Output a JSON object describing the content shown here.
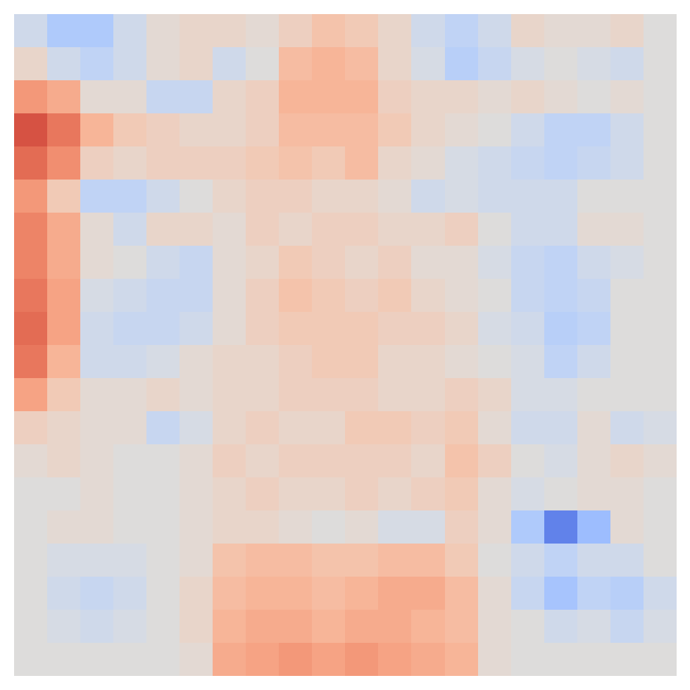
{
  "chart_data": {
    "type": "heatmap",
    "tick_labels": false,
    "color_range": [
      -1,
      1
    ],
    "cells": [
      [
        -0.1,
        -0.3,
        -0.3,
        -0.1,
        0.05,
        0.1,
        0.1,
        0.05,
        0.15,
        0.25,
        0.2,
        0.1,
        -0.1,
        -0.2,
        -0.1,
        0.1,
        0.05,
        0.05,
        0.1,
        0
      ],
      [
        0.1,
        -0.1,
        -0.2,
        -0.1,
        0.05,
        0.1,
        -0.1,
        0,
        0.3,
        0.35,
        0.3,
        0.1,
        -0.05,
        -0.25,
        -0.15,
        -0.05,
        0,
        -0.05,
        -0.1,
        0
      ],
      [
        0.5,
        0.4,
        0.05,
        0.05,
        -0.15,
        -0.15,
        0.1,
        0.15,
        0.35,
        0.35,
        0.35,
        0.15,
        0.1,
        0.1,
        0.05,
        0.1,
        0.05,
        0,
        0.05,
        0
      ],
      [
        0.8,
        0.65,
        0.35,
        0.2,
        0.15,
        0.1,
        0.1,
        0.15,
        0.3,
        0.3,
        0.3,
        0.2,
        0.1,
        0.05,
        0,
        -0.1,
        -0.2,
        -0.2,
        -0.1,
        0
      ],
      [
        0.7,
        0.55,
        0.15,
        0.1,
        0.15,
        0.15,
        0.15,
        0.2,
        0.25,
        0.2,
        0.3,
        0.1,
        0.05,
        -0.05,
        -0.1,
        -0.15,
        -0.2,
        -0.15,
        -0.1,
        0
      ],
      [
        0.5,
        0.2,
        -0.2,
        -0.2,
        -0.1,
        0,
        0.1,
        0.15,
        0.15,
        0.1,
        0.1,
        0.05,
        -0.1,
        -0.05,
        -0.1,
        -0.1,
        -0.1,
        0,
        0,
        0
      ],
      [
        0.6,
        0.4,
        0.05,
        -0.1,
        0.1,
        0.1,
        0.05,
        0.15,
        0.1,
        0.15,
        0.15,
        0.1,
        0.1,
        0.15,
        0,
        -0.1,
        -0.1,
        0.05,
        0.05,
        0
      ],
      [
        0.6,
        0.4,
        0.05,
        0,
        -0.1,
        -0.15,
        0.05,
        0.1,
        0.2,
        0.15,
        0.1,
        0.15,
        0.05,
        0.05,
        -0.05,
        -0.15,
        -0.2,
        -0.1,
        -0.05,
        0
      ],
      [
        0.65,
        0.45,
        -0.05,
        -0.1,
        -0.15,
        -0.15,
        0.05,
        0.15,
        0.25,
        0.2,
        0.15,
        0.2,
        0.1,
        0.05,
        0,
        -0.15,
        -0.2,
        -0.15,
        0,
        0
      ],
      [
        0.7,
        0.45,
        -0.1,
        -0.15,
        -0.15,
        -0.1,
        0.05,
        0.15,
        0.2,
        0.2,
        0.2,
        0.15,
        0.15,
        0.1,
        -0.05,
        -0.1,
        -0.25,
        -0.2,
        0,
        0
      ],
      [
        0.65,
        0.35,
        -0.1,
        -0.1,
        -0.05,
        0.05,
        0.1,
        0.1,
        0.15,
        0.2,
        0.2,
        0.1,
        0.1,
        0.05,
        0,
        -0.05,
        -0.2,
        -0.1,
        0,
        0
      ],
      [
        0.45,
        0.2,
        0.05,
        0.05,
        0.1,
        0.05,
        0.1,
        0.1,
        0.15,
        0.15,
        0.15,
        0.1,
        0.1,
        0.15,
        0.1,
        -0.05,
        -0.05,
        0,
        0,
        0
      ],
      [
        0.15,
        0.1,
        0.05,
        0.05,
        -0.15,
        -0.05,
        0.1,
        0.15,
        0.1,
        0.1,
        0.2,
        0.2,
        0.15,
        0.2,
        0.05,
        -0.1,
        -0.1,
        0.05,
        -0.1,
        -0.05
      ],
      [
        0.05,
        0.1,
        0.05,
        0,
        0,
        0.05,
        0.15,
        0.1,
        0.15,
        0.15,
        0.15,
        0.15,
        0.1,
        0.25,
        0.15,
        0,
        -0.05,
        0.05,
        0.1,
        0.05
      ],
      [
        0,
        0,
        0.05,
        0,
        0,
        0.05,
        0.1,
        0.15,
        0.1,
        0.1,
        0.15,
        0.1,
        0.15,
        0.2,
        0.05,
        -0.05,
        0,
        0.05,
        0.05,
        0
      ],
      [
        0,
        0.05,
        0.05,
        0,
        0,
        0.05,
        0.1,
        0.1,
        0.05,
        0,
        0.05,
        -0.05,
        -0.05,
        0.15,
        0.05,
        -0.3,
        -0.75,
        -0.4,
        0.05,
        0
      ],
      [
        0,
        -0.05,
        -0.05,
        -0.05,
        0,
        0.05,
        0.25,
        0.3,
        0.3,
        0.25,
        0.25,
        0.3,
        0.3,
        0.2,
        0,
        -0.1,
        -0.2,
        -0.1,
        -0.1,
        0
      ],
      [
        0,
        -0.1,
        -0.15,
        -0.1,
        0,
        0.1,
        0.3,
        0.35,
        0.35,
        0.3,
        0.35,
        0.4,
        0.4,
        0.3,
        0.05,
        -0.15,
        -0.35,
        -0.2,
        -0.25,
        -0.1
      ],
      [
        0,
        -0.05,
        -0.1,
        -0.05,
        0,
        0.1,
        0.35,
        0.4,
        0.4,
        0.35,
        0.4,
        0.4,
        0.35,
        0.3,
        0.05,
        0,
        -0.1,
        -0.05,
        -0.15,
        -0.05
      ],
      [
        0,
        0,
        0,
        0,
        0,
        0.05,
        0.4,
        0.45,
        0.5,
        0.45,
        0.5,
        0.45,
        0.4,
        0.35,
        0.05,
        0,
        0,
        0,
        0,
        0
      ]
    ]
  }
}
